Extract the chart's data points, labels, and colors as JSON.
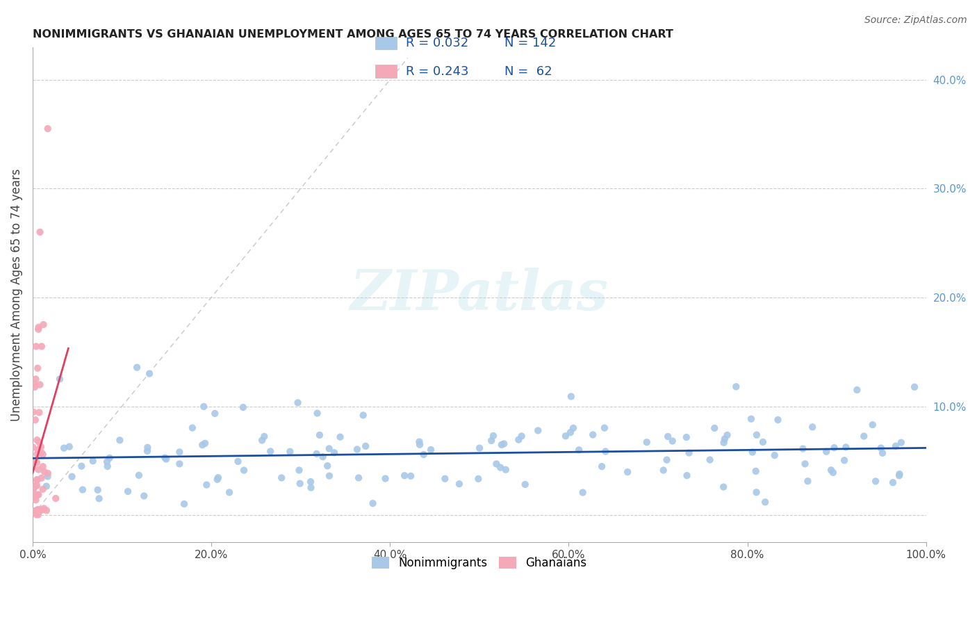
{
  "title": "NONIMMIGRANTS VS GHANAIAN UNEMPLOYMENT AMONG AGES 65 TO 74 YEARS CORRELATION CHART",
  "source": "Source: ZipAtlas.com",
  "ylabel": "Unemployment Among Ages 65 to 74 years",
  "xlim": [
    0,
    1.0
  ],
  "ylim": [
    -0.025,
    0.43
  ],
  "blue_color": "#a8c8e8",
  "pink_color": "#f4a8b8",
  "blue_line_color": "#1a4fa0",
  "pink_line_color": "#e04060",
  "dashed_line_color": "#c8c8c8",
  "legend_R_blue": "0.032",
  "legend_N_blue": "142",
  "legend_R_pink": "0.243",
  "legend_N_pink": "62",
  "watermark": "ZIPatlas",
  "seed": 42
}
